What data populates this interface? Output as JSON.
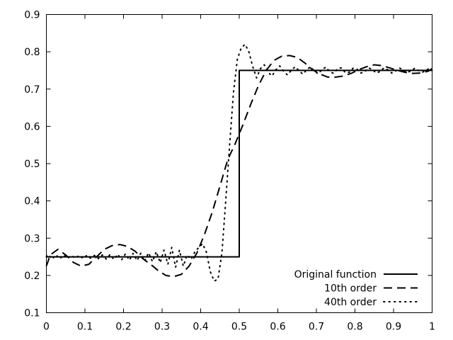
{
  "chart_data": {
    "type": "line",
    "title": "",
    "xlabel": "",
    "ylabel": "",
    "xlim": [
      0,
      1
    ],
    "ylim": [
      0.1,
      0.9
    ],
    "xticks": [
      "0",
      "0.1",
      "0.2",
      "0.3",
      "0.4",
      "0.5",
      "0.6",
      "0.7",
      "0.8",
      "0.9",
      "1"
    ],
    "yticks": [
      "0.1",
      "0.2",
      "0.3",
      "0.4",
      "0.5",
      "0.6",
      "0.7",
      "0.8",
      "0.9"
    ],
    "grid": false,
    "legend_position": "bottom-right",
    "series": [
      {
        "name": "Original function",
        "style": "solid",
        "color": "#000000",
        "x": [
          0,
          0.5,
          0.5,
          1
        ],
        "y": [
          0.25,
          0.25,
          0.75,
          0.75
        ]
      },
      {
        "name": "10th order",
        "style": "dashed",
        "color": "#000000",
        "x": [
          0,
          0.01,
          0.03,
          0.05,
          0.07,
          0.09,
          0.11,
          0.13,
          0.15,
          0.17,
          0.19,
          0.21,
          0.23,
          0.25,
          0.27,
          0.29,
          0.31,
          0.33,
          0.35,
          0.37,
          0.39,
          0.41,
          0.43,
          0.45,
          0.47,
          0.49,
          0.51,
          0.53,
          0.55,
          0.57,
          0.59,
          0.61,
          0.63,
          0.65,
          0.67,
          0.69,
          0.71,
          0.73,
          0.75,
          0.77,
          0.79,
          0.81,
          0.83,
          0.85,
          0.87,
          0.89,
          0.91,
          0.93,
          0.95,
          0.97,
          0.99,
          1
        ],
        "y": [
          0.225,
          0.255,
          0.27,
          0.255,
          0.235,
          0.225,
          0.23,
          0.25,
          0.27,
          0.28,
          0.283,
          0.278,
          0.265,
          0.245,
          0.23,
          0.213,
          0.2,
          0.197,
          0.203,
          0.225,
          0.26,
          0.31,
          0.37,
          0.44,
          0.51,
          0.555,
          0.605,
          0.66,
          0.71,
          0.75,
          0.777,
          0.788,
          0.79,
          0.785,
          0.77,
          0.752,
          0.74,
          0.732,
          0.732,
          0.735,
          0.742,
          0.752,
          0.76,
          0.765,
          0.763,
          0.757,
          0.75,
          0.745,
          0.742,
          0.743,
          0.748,
          0.755
        ]
      },
      {
        "name": "40th order",
        "style": "dotted",
        "color": "#000000",
        "x": [
          0,
          0.005,
          0.015,
          0.025,
          0.035,
          0.045,
          0.055,
          0.065,
          0.075,
          0.085,
          0.095,
          0.105,
          0.115,
          0.125,
          0.135,
          0.145,
          0.155,
          0.165,
          0.175,
          0.185,
          0.195,
          0.205,
          0.215,
          0.225,
          0.235,
          0.245,
          0.255,
          0.265,
          0.275,
          0.285,
          0.295,
          0.305,
          0.315,
          0.325,
          0.335,
          0.345,
          0.355,
          0.365,
          0.375,
          0.385,
          0.395,
          0.405,
          0.415,
          0.425,
          0.435,
          0.445,
          0.455,
          0.465,
          0.475,
          0.485,
          0.495,
          0.505,
          0.515,
          0.525,
          0.535,
          0.545,
          0.555,
          0.565,
          0.575,
          0.585,
          0.595,
          0.605,
          0.615,
          0.625,
          0.635,
          0.645,
          0.655,
          0.665,
          0.675,
          0.685,
          0.695,
          0.705,
          0.715,
          0.725,
          0.735,
          0.745,
          0.755,
          0.765,
          0.775,
          0.785,
          0.795,
          0.805,
          0.815,
          0.825,
          0.835,
          0.845,
          0.855,
          0.865,
          0.875,
          0.885,
          0.895,
          0.905,
          0.915,
          0.925,
          0.935,
          0.945,
          0.955,
          0.965,
          0.975,
          0.985,
          0.995,
          1
        ],
        "y": [
          0.25,
          0.256,
          0.244,
          0.255,
          0.245,
          0.255,
          0.246,
          0.254,
          0.246,
          0.254,
          0.246,
          0.254,
          0.246,
          0.254,
          0.245,
          0.255,
          0.244,
          0.256,
          0.243,
          0.257,
          0.242,
          0.258,
          0.241,
          0.259,
          0.24,
          0.26,
          0.239,
          0.261,
          0.237,
          0.264,
          0.234,
          0.268,
          0.23,
          0.275,
          0.222,
          0.268,
          0.225,
          0.255,
          0.243,
          0.263,
          0.275,
          0.285,
          0.262,
          0.21,
          0.185,
          0.19,
          0.26,
          0.4,
          0.55,
          0.69,
          0.78,
          0.81,
          0.82,
          0.8,
          0.76,
          0.73,
          0.755,
          0.765,
          0.745,
          0.735,
          0.752,
          0.762,
          0.748,
          0.738,
          0.75,
          0.76,
          0.749,
          0.74,
          0.752,
          0.76,
          0.748,
          0.741,
          0.753,
          0.759,
          0.746,
          0.742,
          0.755,
          0.757,
          0.744,
          0.745,
          0.756,
          0.754,
          0.743,
          0.746,
          0.757,
          0.753,
          0.743,
          0.747,
          0.757,
          0.752,
          0.743,
          0.748,
          0.757,
          0.751,
          0.744,
          0.749,
          0.756,
          0.75,
          0.745,
          0.752,
          0.755,
          0.75
        ]
      }
    ]
  }
}
